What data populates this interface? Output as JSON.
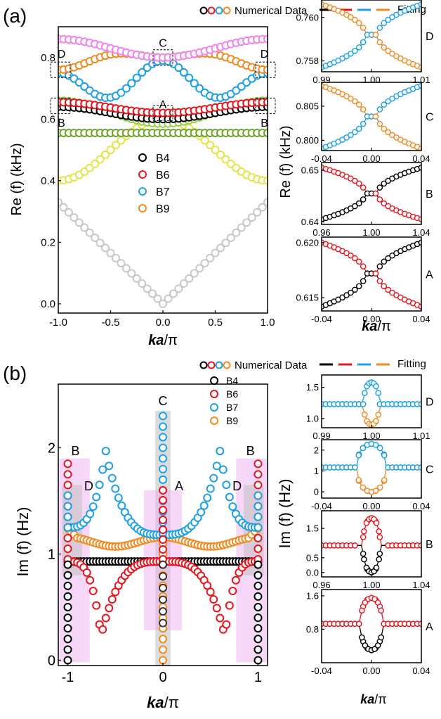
{
  "panel_labels": [
    "(a)",
    "(b)"
  ],
  "legend_top": {
    "data_label": "Numerical Data",
    "fit_label": "Fitting"
  },
  "colors": {
    "B4": "#000000",
    "B6": "#e8141d",
    "B7": "#1ba0e5",
    "B9": "#f08a1e",
    "gray": "#c8c8c8",
    "yellow": "#e4e44a",
    "green": "#6fa42c",
    "lgreen": "#9acd4a",
    "pink": "#ef84ea",
    "dgray": "#333333",
    "shade_gray": "#c0c0c0",
    "shade_pink": "#eaa6ef",
    "box": "#333333"
  },
  "chart_data": [
    {
      "id": "a_main",
      "type": "scatter",
      "xlabel_pre": "ka",
      "xlabel_post": "/π",
      "ylabel": "Re (f) (kHz)",
      "xlim": [
        -1,
        1
      ],
      "ylim": [
        -0.03,
        0.9
      ],
      "xticks": [
        "-1.0",
        "-0.5",
        "0.0",
        "0.5",
        "1.0"
      ],
      "xtick_vals": [
        -1,
        -0.5,
        0,
        0.5,
        1
      ],
      "yticks": [
        "0.0",
        "0.2",
        "0.4",
        "0.6",
        "0.8"
      ],
      "ytick_vals": [
        0,
        0.2,
        0.4,
        0.6,
        0.8
      ],
      "legend": [
        "B4",
        "B6",
        "B7",
        "B9"
      ],
      "box_labels": [
        {
          "t": "C",
          "x": 0,
          "y": 0.835
        },
        {
          "t": "A",
          "x": 0,
          "y": 0.635
        },
        {
          "t": "D",
          "x": -0.97,
          "y": 0.8
        },
        {
          "t": "D",
          "x": 0.97,
          "y": 0.8
        },
        {
          "t": "B",
          "x": -0.97,
          "y": 0.575
        },
        {
          "t": "B",
          "x": 0.97,
          "y": 0.575
        }
      ],
      "bands": [
        {
          "name": "acoustic",
          "color": "gray",
          "kind": "abs",
          "a": 0,
          "b": 0.33
        },
        {
          "name": "yellow",
          "color": "yellow",
          "kind": "cos",
          "a": 0.6,
          "b": 0.4
        },
        {
          "name": "green",
          "color": "green",
          "kind": "flat",
          "a": 0.555,
          "b": 0.555
        },
        {
          "name": "lgreen",
          "color": "lgreen",
          "kind": "cos",
          "a": 0.585,
          "b": 0.66
        },
        {
          "name": "B4",
          "color": "B4",
          "kind": "cos",
          "a": 0.6,
          "b": 0.64
        },
        {
          "name": "B6",
          "color": "B6",
          "kind": "cos",
          "a": 0.62,
          "b": 0.655
        },
        {
          "name": "B7",
          "color": "B7",
          "kind": "sin",
          "a": 0.79,
          "b": 0.75,
          "c": 0.69
        },
        {
          "name": "B9",
          "color": "B9",
          "kind": "sin",
          "a": 0.8,
          "b": 0.76,
          "c": 0.83
        },
        {
          "name": "pink",
          "color": "pink",
          "kind": "cos",
          "a": 0.8,
          "b": 0.86
        }
      ]
    },
    {
      "id": "a_D",
      "type": "scatter",
      "xlim": [
        0.99,
        1.01
      ],
      "ylim": [
        0.7575,
        0.7608
      ],
      "xticks": [
        "0.99",
        "1.00",
        "1.01"
      ],
      "xtick_vals": [
        0.99,
        1.0,
        1.01
      ],
      "yticks": [
        "0.758",
        "0.760"
      ],
      "ytick_vals": [
        0.758,
        0.76
      ],
      "label": "D",
      "center": 1.0,
      "ep": 0.7592,
      "upper": "B9",
      "lower": "B7",
      "mode": "re",
      "span": 0.01,
      "top": 0.7606,
      "bot": 0.7577
    },
    {
      "id": "a_C",
      "type": "scatter",
      "xlim": [
        -0.04,
        0.04
      ],
      "ylim": [
        0.7985,
        0.8085
      ],
      "xticks": [
        "-0.04",
        "0.00",
        "0.04"
      ],
      "xtick_vals": [
        -0.04,
        0,
        0.04
      ],
      "yticks": [
        "0.800",
        "0.805"
      ],
      "ytick_vals": [
        0.8,
        0.805
      ],
      "label": "C",
      "center": 0,
      "ep": 0.8035,
      "upper": "B9",
      "lower": "B7",
      "mode": "re",
      "span": 0.04,
      "top": 0.808,
      "bot": 0.7988
    },
    {
      "id": "a_B",
      "type": "scatter",
      "xlim": [
        0.96,
        1.04
      ],
      "ylim": [
        0.6395,
        0.6515
      ],
      "xticks": [
        "0.96",
        "1.00",
        "1.04"
      ],
      "xtick_vals": [
        0.96,
        1.0,
        1.04
      ],
      "yticks": [
        "0.64",
        "0.65"
      ],
      "ytick_vals": [
        0.64,
        0.65
      ],
      "label": "B",
      "center": 1.0,
      "ep": 0.6455,
      "upper": "B6",
      "lower": "B4",
      "mode": "re",
      "span": 0.04,
      "top": 0.6505,
      "bot": 0.6405
    },
    {
      "id": "a_A",
      "type": "scatter",
      "xlim": [
        -0.04,
        0.04
      ],
      "ylim": [
        0.6138,
        0.6205
      ],
      "xticks": [
        "-0.04",
        "0.00",
        "0.04"
      ],
      "xtick_vals": [
        -0.04,
        0,
        0.04
      ],
      "yticks": [
        "0.615",
        "0.620"
      ],
      "ytick_vals": [
        0.615,
        0.62
      ],
      "label": "A",
      "center": 0,
      "ep": 0.6172,
      "upper": "B6",
      "lower": "B4",
      "mode": "re",
      "span": 0.04,
      "top": 0.62,
      "bot": 0.6142
    },
    {
      "id": "b_main",
      "type": "scatter",
      "xlabel_pre": "ka",
      "xlabel_post": "/π",
      "ylabel": "Im (f) (Hz)",
      "xlim": [
        -1.1,
        1.1
      ],
      "ylim": [
        -0.05,
        2.6
      ],
      "xticks": [
        "-1",
        "0",
        "1"
      ],
      "xtick_vals": [
        -1,
        0,
        1
      ],
      "yticks": [
        "0",
        "1",
        "2"
      ],
      "ytick_vals": [
        0,
        1,
        2
      ],
      "legend": [
        "B4",
        "B6",
        "B7",
        "B9"
      ],
      "region_labels": [
        {
          "t": "C",
          "x": 0,
          "y": 2.4
        },
        {
          "t": "A",
          "x": 0.17,
          "y": 1.6
        },
        {
          "t": "B",
          "x": -0.92,
          "y": 1.93
        },
        {
          "t": "B",
          "x": 0.92,
          "y": 1.93
        },
        {
          "t": "D",
          "x": -0.78,
          "y": 1.6
        },
        {
          "t": "D",
          "x": 0.78,
          "y": 1.6
        }
      ]
    },
    {
      "id": "b_D",
      "type": "scatter",
      "xlim": [
        0.99,
        1.01
      ],
      "ylim": [
        0.85,
        1.7
      ],
      "xticks": [
        "0.99",
        "1.00",
        "1.01"
      ],
      "xtick_vals": [
        0.99,
        1.0,
        1.01
      ],
      "yticks": [
        "1.0",
        "1.5"
      ],
      "ytick_vals": [
        1.0,
        1.5
      ],
      "label": "D",
      "center": 1.0,
      "ep": 1.23,
      "upper": "B7",
      "lower": "B9",
      "mode": "im",
      "span": 0.01,
      "w": 0.0016,
      "top": 1.58,
      "bot": 0.9
    },
    {
      "id": "b_C",
      "type": "scatter",
      "xlim": [
        -0.04,
        0.04
      ],
      "ylim": [
        -0.3,
        2.5
      ],
      "xticks": [
        "-0.04",
        "0.00",
        "0.04"
      ],
      "xtick_vals": [
        -0.04,
        0,
        0.04
      ],
      "yticks": [
        "0",
        "1",
        "2"
      ],
      "ytick_vals": [
        0,
        1,
        2
      ],
      "label": "C",
      "center": 0,
      "ep": 1.17,
      "upper": "B7",
      "lower": "B9",
      "mode": "im",
      "span": 0.04,
      "w": 0.012,
      "top": 2.3,
      "bot": 0.0
    },
    {
      "id": "b_B",
      "type": "scatter",
      "xlim": [
        0.96,
        1.04
      ],
      "ylim": [
        -0.15,
        2.1
      ],
      "xticks": [
        "0.96",
        "1.00",
        "1.04"
      ],
      "xtick_vals": [
        0.96,
        1.0,
        1.04
      ],
      "yticks": [
        "0.0",
        "0.5",
        "1.5"
      ],
      "ytick_vals": [
        0,
        0.5,
        1.5
      ],
      "label": "B",
      "center": 1.0,
      "ep": 0.92,
      "upper": "B6",
      "lower": "B4",
      "mode": "im",
      "span": 0.04,
      "w": 0.007,
      "top": 1.85,
      "bot": 0.0,
      "gap": true
    },
    {
      "id": "b_A",
      "type": "scatter",
      "xlim": [
        -0.04,
        0.04
      ],
      "ylim": [
        0.0,
        1.75
      ],
      "xticks": [
        "-0.04",
        "0.00",
        "0.04"
      ],
      "xtick_vals": [
        -0.04,
        0,
        0.04
      ],
      "yticks": [
        "0.8",
        "1.6"
      ],
      "ytick_vals": [
        0.8,
        1.6
      ],
      "label": "A",
      "center": 0,
      "ep": 0.93,
      "upper": "B6",
      "lower": "B4",
      "mode": "im",
      "span": 0.04,
      "w": 0.009,
      "top": 1.55,
      "bot": 0.3
    }
  ],
  "inset_axes_labels": {
    "a": {
      "ylabel": "Re (f) (kHz)",
      "xlabel_pre": "ka",
      "xlabel_post": "/π"
    },
    "b": {
      "ylabel": "Im (f) (Hz)",
      "xlabel_pre": "ka",
      "xlabel_post": "/π"
    }
  }
}
